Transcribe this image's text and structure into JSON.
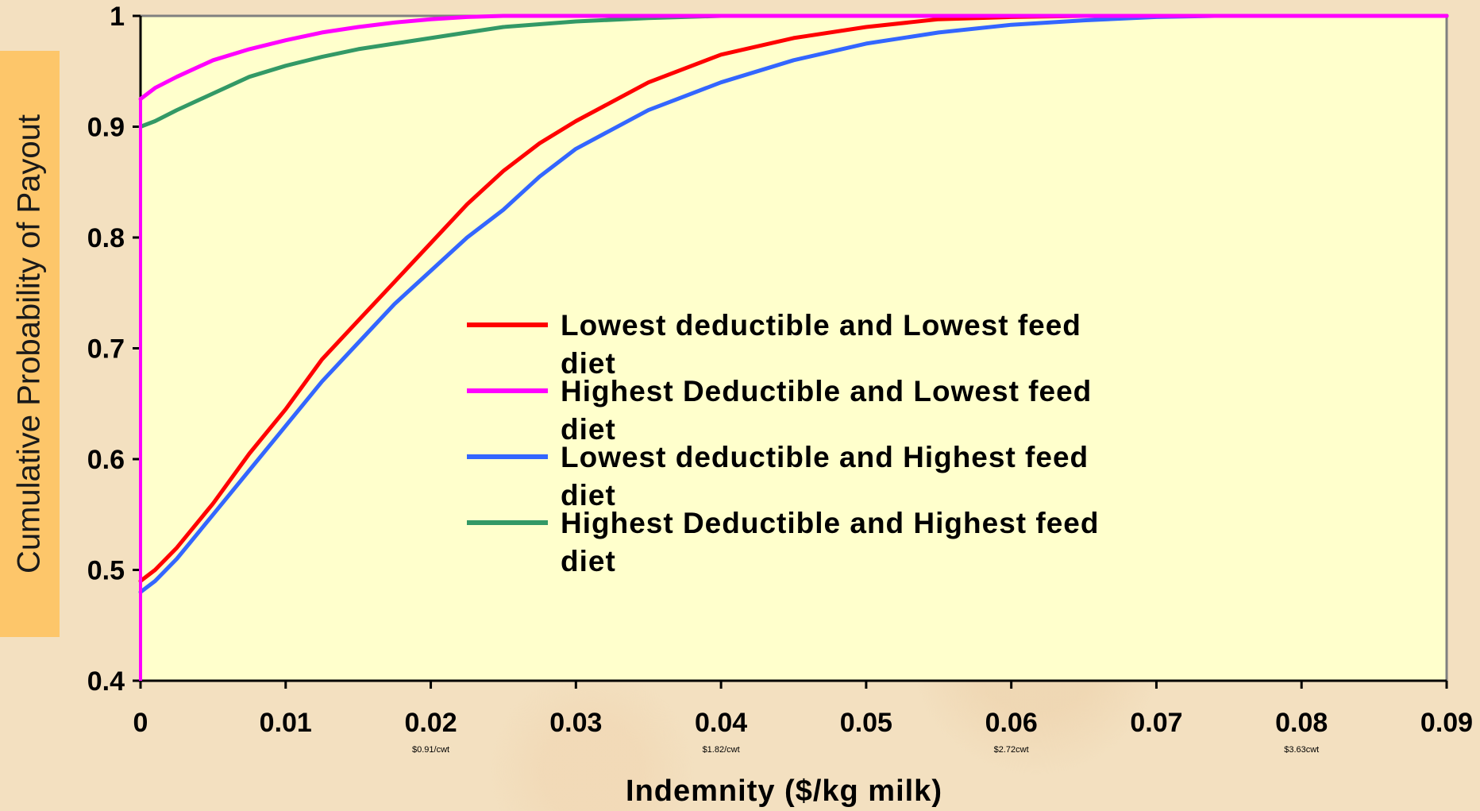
{
  "chart_data": {
    "type": "line",
    "title": "",
    "xlabel": "Indemnity ($/kg milk)",
    "ylabel": "Cumulative Probability of Payout",
    "xlim": [
      0,
      0.09
    ],
    "ylim": [
      0.4,
      1
    ],
    "x_ticks": [
      "0",
      "0.01",
      "0.02",
      "0.03",
      "0.04",
      "0.05",
      "0.06",
      "0.07",
      "0.08",
      "0.09"
    ],
    "y_ticks": [
      "0.4",
      "0.5",
      "0.6",
      "0.7",
      "0.8",
      "0.9",
      "1"
    ],
    "x_sublabels": [
      {
        "x": 0.02,
        "text": "$0.91/cwt"
      },
      {
        "x": 0.04,
        "text": "$1.82/cwt"
      },
      {
        "x": 0.06,
        "text": "$2.72cwt"
      },
      {
        "x": 0.08,
        "text": "$3.63cwt"
      }
    ],
    "grid": false,
    "legend_position": "center",
    "colors": {
      "plot_background": "#ffffcc",
      "ylabel_box": "#fdc66a"
    },
    "series": [
      {
        "name": "Lowest deductible and Lowest feed diet",
        "legend_lines": [
          "Lowest deductible and Lowest feed",
          "diet"
        ],
        "color": "#ff0000",
        "x": [
          0,
          0.001,
          0.0025,
          0.005,
          0.0075,
          0.01,
          0.0125,
          0.015,
          0.0175,
          0.02,
          0.0225,
          0.025,
          0.0275,
          0.03,
          0.035,
          0.04,
          0.045,
          0.05,
          0.055,
          0.06,
          0.065,
          0.09
        ],
        "y": [
          0.49,
          0.5,
          0.52,
          0.56,
          0.605,
          0.645,
          0.69,
          0.725,
          0.76,
          0.795,
          0.83,
          0.86,
          0.885,
          0.905,
          0.94,
          0.965,
          0.98,
          0.99,
          0.997,
          0.999,
          1.0,
          1.0
        ]
      },
      {
        "name": "Highest Deductible and Lowest feed diet",
        "legend_lines": [
          "Highest Deductible and Lowest feed",
          "diet"
        ],
        "color": "#ff00ff",
        "x": [
          0,
          0.001,
          0.0025,
          0.005,
          0.0075,
          0.01,
          0.0125,
          0.015,
          0.0175,
          0.02,
          0.0225,
          0.025,
          0.03,
          0.033,
          0.09
        ],
        "y": [
          0.925,
          0.935,
          0.945,
          0.96,
          0.97,
          0.978,
          0.985,
          0.99,
          0.994,
          0.997,
          0.999,
          1.0,
          1.0,
          1.0,
          1.0
        ]
      },
      {
        "name": "Lowest deductible and Highest feed diet",
        "legend_lines": [
          "Lowest deductible and Highest feed",
          "diet"
        ],
        "color": "#3366ff",
        "x": [
          0,
          0.001,
          0.0025,
          0.005,
          0.0075,
          0.01,
          0.0125,
          0.015,
          0.0175,
          0.02,
          0.0225,
          0.025,
          0.0275,
          0.03,
          0.035,
          0.04,
          0.045,
          0.05,
          0.055,
          0.06,
          0.065,
          0.07,
          0.074,
          0.09
        ],
        "y": [
          0.48,
          0.49,
          0.51,
          0.55,
          0.59,
          0.63,
          0.67,
          0.705,
          0.74,
          0.77,
          0.8,
          0.825,
          0.855,
          0.88,
          0.915,
          0.94,
          0.96,
          0.975,
          0.985,
          0.992,
          0.996,
          0.999,
          1.0,
          1.0
        ]
      },
      {
        "name": "Highest Deductible and Highest feed diet",
        "legend_lines": [
          "Highest Deductible and Highest feed",
          "diet"
        ],
        "color": "#339966",
        "x": [
          0,
          0.001,
          0.0025,
          0.005,
          0.0075,
          0.01,
          0.0125,
          0.015,
          0.0175,
          0.02,
          0.0225,
          0.025,
          0.03,
          0.035,
          0.04,
          0.09
        ],
        "y": [
          0.9,
          0.905,
          0.915,
          0.93,
          0.945,
          0.955,
          0.963,
          0.97,
          0.975,
          0.98,
          0.985,
          0.99,
          0.995,
          0.998,
          1.0,
          1.0
        ]
      }
    ]
  }
}
